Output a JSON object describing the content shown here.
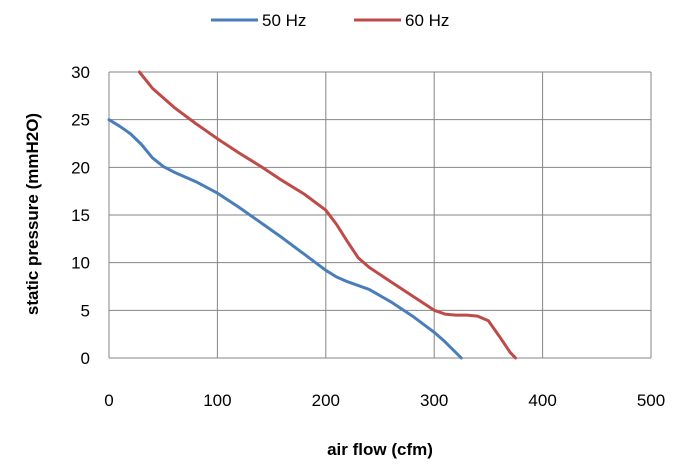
{
  "chart_data": {
    "type": "line",
    "title": "",
    "xlabel": "air flow (cfm)",
    "ylabel": "static  pressure (mmH2O)",
    "xlim": [
      0,
      500
    ],
    "ylim": [
      0,
      30
    ],
    "xticks": [
      0,
      100,
      200,
      300,
      400,
      500
    ],
    "yticks": [
      0,
      5,
      10,
      15,
      20,
      25,
      30
    ],
    "grid": true,
    "legend_position": "top",
    "series": [
      {
        "name": "50 Hz",
        "color": "#4a7ebb",
        "x": [
          0,
          10,
          20,
          30,
          40,
          50,
          60,
          80,
          100,
          120,
          140,
          160,
          180,
          200,
          210,
          220,
          240,
          260,
          280,
          300,
          310,
          318,
          325
        ],
        "y": [
          25,
          24.3,
          23.5,
          22.4,
          21,
          20.1,
          19.5,
          18.5,
          17.3,
          15.8,
          14.2,
          12.6,
          10.9,
          9.2,
          8.5,
          8.0,
          7.2,
          5.9,
          4.4,
          2.7,
          1.7,
          0.8,
          0
        ]
      },
      {
        "name": "60 Hz",
        "color": "#be4b48",
        "x": [
          28,
          40,
          60,
          80,
          100,
          120,
          140,
          160,
          180,
          200,
          210,
          220,
          230,
          240,
          260,
          280,
          300,
          310,
          320,
          330,
          340,
          350,
          360,
          370,
          375
        ],
        "y": [
          30,
          28.3,
          26.3,
          24.6,
          23.0,
          21.5,
          20.1,
          18.6,
          17.2,
          15.5,
          14.0,
          12.2,
          10.5,
          9.5,
          8.0,
          6.5,
          5.0,
          4.6,
          4.5,
          4.5,
          4.4,
          3.9,
          2.3,
          0.6,
          0
        ]
      }
    ]
  }
}
